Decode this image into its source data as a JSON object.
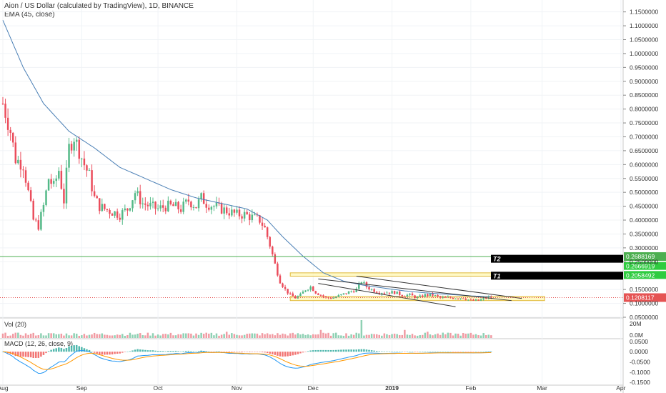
{
  "header": {
    "title": "Aion / US Dollar (calculated by TradingView), 1D, BINANCE",
    "indicator": "EMA (45, close)"
  },
  "panes": {
    "vol_label": "Vol (20)",
    "macd_label": "MACD (12, 26, close, 9)"
  },
  "colors": {
    "up": "#53b987",
    "down": "#eb4d5c",
    "ema": "#4a7fb5",
    "support": "#4caf50",
    "zone_fill": "#fff7b3",
    "zone_stroke": "#e0b93a",
    "price_tag": "#e55353",
    "macd_line": "#2196f3",
    "signal_line": "#ff9800"
  },
  "chart_data": {
    "type": "candlestick",
    "price_axis_ticks": [
      "1.1500000",
      "1.1000000",
      "1.0500000",
      "1.0000000",
      "0.9500000",
      "0.9000000",
      "0.8500000",
      "0.8000000",
      "0.7500000",
      "0.7000000",
      "0.6500000",
      "0.6000000",
      "0.5500000",
      "0.5000000",
      "0.4500000",
      "0.4000000",
      "0.3500000",
      "0.3000000",
      "0.2500000",
      "0.1500000",
      "0.1000000",
      "0.0500000"
    ],
    "price_axis_values": [
      1.15,
      1.1,
      1.05,
      1.0,
      0.95,
      0.9,
      0.85,
      0.8,
      0.75,
      0.7,
      0.65,
      0.6,
      0.55,
      0.5,
      0.45,
      0.4,
      0.35,
      0.3,
      0.25,
      0.15,
      0.1,
      0.05
    ],
    "price_range": [
      0.05,
      1.18
    ],
    "time_axis": [
      {
        "label": "Aug",
        "day": 0
      },
      {
        "label": "Sep",
        "day": 31
      },
      {
        "label": "Oct",
        "day": 61
      },
      {
        "label": "Nov",
        "day": 92
      },
      {
        "label": "Dec",
        "day": 122
      },
      {
        "label": "2019",
        "day": 153
      },
      {
        "label": "Feb",
        "day": 184
      },
      {
        "label": "Mar",
        "day": 212
      },
      {
        "label": "Apr",
        "day": 243
      }
    ],
    "close_keypoints": [
      [
        0,
        0.82
      ],
      [
        3,
        0.72
      ],
      [
        5,
        0.62
      ],
      [
        8,
        0.6
      ],
      [
        10,
        0.5
      ],
      [
        12,
        0.4
      ],
      [
        14,
        0.38
      ],
      [
        16,
        0.45
      ],
      [
        18,
        0.55
      ],
      [
        20,
        0.52
      ],
      [
        22,
        0.58
      ],
      [
        24,
        0.47
      ],
      [
        26,
        0.66
      ],
      [
        28,
        0.7
      ],
      [
        30,
        0.65
      ],
      [
        32,
        0.6
      ],
      [
        34,
        0.56
      ],
      [
        36,
        0.48
      ],
      [
        38,
        0.45
      ],
      [
        40,
        0.44
      ],
      [
        43,
        0.43
      ],
      [
        46,
        0.42
      ],
      [
        49,
        0.44
      ],
      [
        52,
        0.5
      ],
      [
        55,
        0.46
      ],
      [
        58,
        0.45
      ],
      [
        61,
        0.44
      ],
      [
        64,
        0.45
      ],
      [
        67,
        0.45
      ],
      [
        70,
        0.44
      ],
      [
        73,
        0.47
      ],
      [
        76,
        0.45
      ],
      [
        78,
        0.48
      ],
      [
        80,
        0.46
      ],
      [
        83,
        0.45
      ],
      [
        86,
        0.44
      ],
      [
        89,
        0.43
      ],
      [
        92,
        0.42
      ],
      [
        95,
        0.42
      ],
      [
        98,
        0.41
      ],
      [
        101,
        0.4
      ],
      [
        103,
        0.37
      ],
      [
        105,
        0.31
      ],
      [
        107,
        0.24
      ],
      [
        109,
        0.18
      ],
      [
        111,
        0.15
      ],
      [
        113,
        0.13
      ],
      [
        115,
        0.12
      ],
      [
        117,
        0.13
      ],
      [
        119,
        0.15
      ],
      [
        121,
        0.16
      ],
      [
        123,
        0.14
      ],
      [
        125,
        0.13
      ],
      [
        127,
        0.12
      ],
      [
        130,
        0.12
      ],
      [
        133,
        0.13
      ],
      [
        136,
        0.14
      ],
      [
        139,
        0.15
      ],
      [
        141,
        0.18
      ],
      [
        143,
        0.16
      ],
      [
        145,
        0.15
      ],
      [
        148,
        0.14
      ],
      [
        151,
        0.14
      ],
      [
        154,
        0.14
      ],
      [
        157,
        0.13
      ],
      [
        160,
        0.13
      ],
      [
        163,
        0.12
      ],
      [
        166,
        0.13
      ],
      [
        169,
        0.13
      ],
      [
        172,
        0.12
      ],
      [
        175,
        0.12
      ],
      [
        178,
        0.12
      ],
      [
        181,
        0.12
      ],
      [
        184,
        0.11
      ],
      [
        187,
        0.11
      ],
      [
        190,
        0.12
      ],
      [
        192,
        0.121
      ]
    ],
    "ema_keypoints": [
      [
        0,
        1.12
      ],
      [
        8,
        0.95
      ],
      [
        16,
        0.82
      ],
      [
        26,
        0.72
      ],
      [
        36,
        0.66
      ],
      [
        46,
        0.59
      ],
      [
        56,
        0.55
      ],
      [
        66,
        0.51
      ],
      [
        76,
        0.48
      ],
      [
        86,
        0.46
      ],
      [
        96,
        0.44
      ],
      [
        104,
        0.4
      ],
      [
        110,
        0.34
      ],
      [
        118,
        0.27
      ],
      [
        126,
        0.21
      ],
      [
        134,
        0.18
      ],
      [
        142,
        0.165
      ],
      [
        150,
        0.155
      ],
      [
        158,
        0.145
      ],
      [
        166,
        0.138
      ],
      [
        176,
        0.132
      ],
      [
        184,
        0.127
      ],
      [
        192,
        0.124
      ]
    ],
    "support_line": {
      "value": 0.2688169,
      "label": "0.2688169"
    },
    "targets": [
      {
        "name": "T2",
        "value": 0.2666919,
        "label": "0.2666919"
      },
      {
        "name": "T1",
        "value": 0.2058492,
        "label": "0.2058492"
      }
    ],
    "last_price": {
      "value": 0.1208117,
      "label": "0.1208117"
    },
    "zones": [
      {
        "from_day": 113,
        "to_day": 213,
        "low": 0.11,
        "high": 0.125
      },
      {
        "from_day": 113,
        "to_day": 213,
        "low": 0.198,
        "high": 0.21
      }
    ],
    "trendlines": [
      {
        "d1": 124,
        "v1": 0.188,
        "d2": 200,
        "v2": 0.11
      },
      {
        "d1": 139,
        "v1": 0.198,
        "d2": 204,
        "v2": 0.118
      },
      {
        "d1": 124,
        "v1": 0.172,
        "d2": 178,
        "v2": 0.088
      }
    ],
    "volume": {
      "label": "Vol (20)",
      "axis_ticks": [
        "20M",
        "0.0M"
      ],
      "axis_values": [
        20,
        0
      ]
    },
    "macd": {
      "label": "MACD (12, 26, close, 9)",
      "axis_ticks": [
        "0.0500",
        "0.0000",
        "-0.0500",
        "-0.1000",
        "-0.1500"
      ],
      "axis_values": [
        0.05,
        0.0,
        -0.05,
        -0.1,
        -0.15
      ]
    }
  }
}
